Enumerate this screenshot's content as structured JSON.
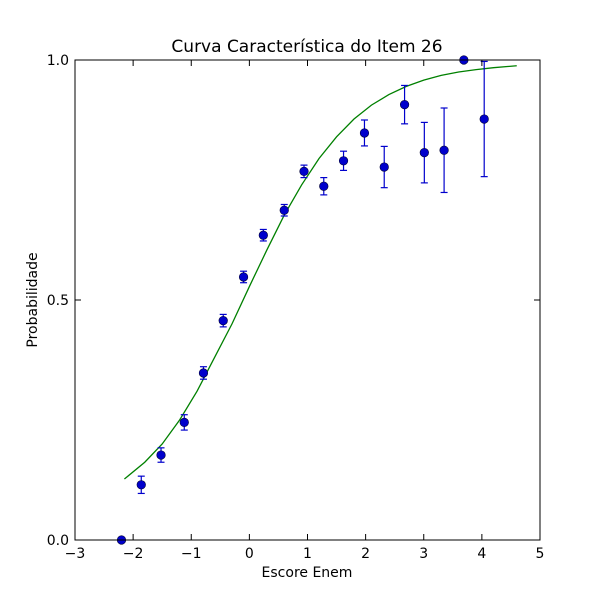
{
  "chart_data": {
    "type": "scatter",
    "title": "Curva Característica do Item 26",
    "xlabel": "Escore Enem",
    "ylabel": "Probabilidade",
    "xlim": [
      -3,
      5
    ],
    "ylim": [
      0,
      1
    ],
    "xticks": [
      -3,
      -2,
      -1,
      0,
      1,
      2,
      3,
      4,
      5
    ],
    "xtick_labels": [
      "−3",
      "−2",
      "−1",
      "0",
      "1",
      "2",
      "3",
      "4",
      "5"
    ],
    "yticks": [
      0,
      0.5,
      1
    ],
    "ytick_labels": [
      "0.0",
      "0.5",
      "1.0"
    ],
    "grid": false,
    "colors": {
      "points": "#0000cc",
      "curve": "#008000"
    },
    "points": {
      "x": [
        -2.2,
        -1.86,
        -1.52,
        -1.12,
        -0.79,
        -0.45,
        -0.1,
        0.24,
        0.6,
        0.94,
        1.28,
        1.62,
        1.98,
        2.32,
        2.67,
        3.01,
        3.35,
        3.69,
        4.04
      ],
      "y": [
        0.0,
        0.115,
        0.177,
        0.245,
        0.348,
        0.457,
        0.548,
        0.635,
        0.687,
        0.768,
        0.737,
        0.79,
        0.848,
        0.777,
        0.907,
        0.807,
        0.812,
        1.0,
        0.877
      ],
      "yerr": [
        0.0,
        0.018,
        0.015,
        0.016,
        0.013,
        0.013,
        0.012,
        0.012,
        0.012,
        0.013,
        0.018,
        0.02,
        0.027,
        0.043,
        0.04,
        0.063,
        0.088,
        0.0,
        0.12
      ]
    },
    "curve": {
      "x": [
        -2.15,
        -1.8,
        -1.5,
        -1.2,
        -0.9,
        -0.6,
        -0.3,
        0.0,
        0.3,
        0.6,
        0.9,
        1.2,
        1.5,
        1.8,
        2.1,
        2.4,
        2.7,
        3.0,
        3.3,
        3.6,
        3.9,
        4.2,
        4.6
      ],
      "y": [
        0.127,
        0.162,
        0.2,
        0.25,
        0.31,
        0.38,
        0.45,
        0.528,
        0.604,
        0.677,
        0.74,
        0.795,
        0.84,
        0.877,
        0.906,
        0.928,
        0.945,
        0.958,
        0.968,
        0.975,
        0.98,
        0.984,
        0.988
      ]
    }
  }
}
